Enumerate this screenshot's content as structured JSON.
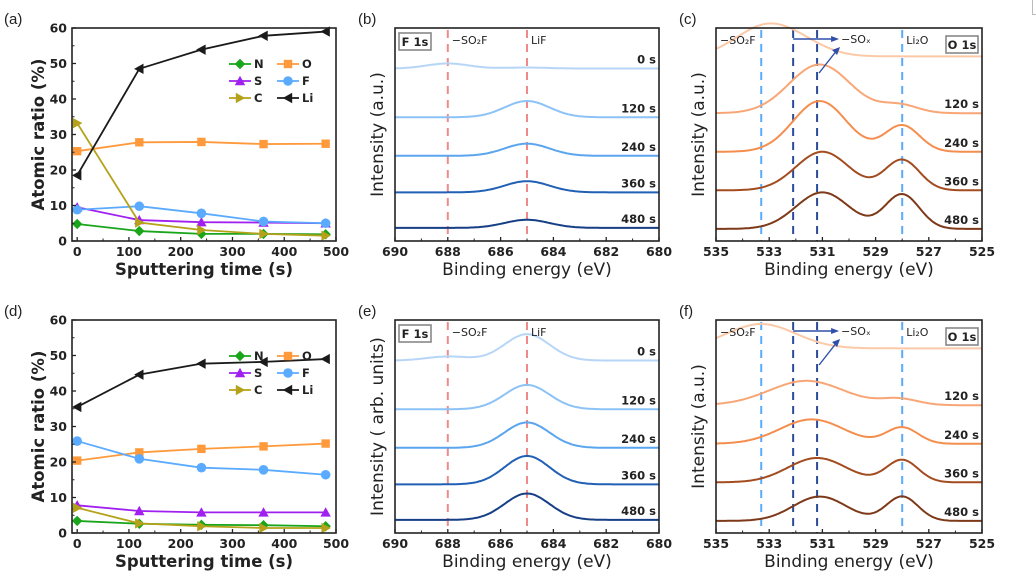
{
  "chart_data": [
    {
      "id": "a",
      "panel_label": "(a)",
      "type": "line",
      "xlabel": "Sputtering time (s)",
      "ylabel": "Atomic ratio (%)",
      "xlim": [
        -10,
        500
      ],
      "ylim": [
        0,
        60
      ],
      "xticks": [
        0,
        100,
        200,
        300,
        400,
        500
      ],
      "yticks": [
        0,
        10,
        20,
        30,
        40,
        50,
        60
      ],
      "grid": false,
      "legend_position": "upper-right",
      "x": [
        0,
        120,
        240,
        360,
        480
      ],
      "series": [
        {
          "name": "N",
          "color": "#1aa51a",
          "marker": "diamond",
          "values": [
            4.8,
            2.8,
            2.0,
            2.0,
            1.9
          ]
        },
        {
          "name": "O",
          "color": "#ff9a3c",
          "marker": "square",
          "values": [
            25.3,
            27.8,
            27.9,
            27.3,
            27.4
          ]
        },
        {
          "name": "S",
          "color": "#a020f0",
          "marker": "triangle-up",
          "values": [
            9.5,
            5.9,
            5.3,
            5.2,
            5.0
          ]
        },
        {
          "name": "F",
          "color": "#5aabff",
          "marker": "circle",
          "values": [
            8.8,
            9.8,
            7.8,
            5.5,
            5.0
          ]
        },
        {
          "name": "C",
          "color": "#b5a21a",
          "marker": "triangle-right",
          "values": [
            33.2,
            5.2,
            3.1,
            2.0,
            1.5
          ]
        },
        {
          "name": "Li",
          "color": "#1a1a1a",
          "marker": "triangle-left",
          "values": [
            18.5,
            48.5,
            53.9,
            57.8,
            59.0
          ]
        }
      ]
    },
    {
      "id": "b",
      "panel_label": "(b)",
      "type": "line",
      "core_level": "F 1s",
      "xlabel": "Binding energy (eV)",
      "ylabel": "Intensity (a.u.)",
      "xlim": [
        690,
        680
      ],
      "xticks": [
        690,
        688,
        686,
        684,
        682,
        680
      ],
      "reference_lines": [
        {
          "label": "−SO₂F",
          "energy": 688.0,
          "color": "#f08a8a"
        },
        {
          "label": "LiF",
          "energy": 685.0,
          "color": "#f08a8a"
        }
      ],
      "series": [
        {
          "name": "0 s",
          "color": "#b7d6f7",
          "baseline": 0.82,
          "peaks": [
            {
              "center": 688.0,
              "height": 0.025,
              "width": 0.8
            },
            {
              "center": 685.0,
              "height": 0.005,
              "width": 0.8
            }
          ]
        },
        {
          "name": "120 s",
          "color": "#8cc2f5",
          "baseline": 0.58,
          "peaks": [
            {
              "center": 685.0,
              "height": 0.08,
              "width": 0.85
            }
          ]
        },
        {
          "name": "240 s",
          "color": "#5aa5ee",
          "baseline": 0.39,
          "peaks": [
            {
              "center": 685.0,
              "height": 0.06,
              "width": 0.85
            }
          ]
        },
        {
          "name": "360 s",
          "color": "#2160b5",
          "baseline": 0.21,
          "peaks": [
            {
              "center": 685.0,
              "height": 0.055,
              "width": 0.85
            }
          ]
        },
        {
          "name": "480 s",
          "color": "#163f86",
          "baseline": 0.035,
          "peaks": [
            {
              "center": 685.0,
              "height": 0.04,
              "width": 0.85
            }
          ]
        }
      ]
    },
    {
      "id": "c",
      "panel_label": "(c)",
      "type": "line",
      "core_level": "O 1s",
      "xlabel": "Binding energy (eV)",
      "ylabel": "Intensity (a.u.)",
      "xlim": [
        535,
        525
      ],
      "xticks": [
        535,
        533,
        531,
        529,
        527,
        525
      ],
      "reference_lines": [
        {
          "label": "−SO₂F",
          "energy": 533.3,
          "color": "#5aabff"
        },
        {
          "label": "",
          "energy": 532.1,
          "color": "#2a4a9a"
        },
        {
          "label": "−SOₓ",
          "energy": 531.2,
          "color": "#2a4a9a"
        },
        {
          "label": "Li₂O",
          "energy": 528.0,
          "color": "#5aabff"
        }
      ],
      "annotation": {
        "text": "−SOₓ",
        "arrow_from": 532.1,
        "arrow_to": 531.2
      },
      "series": [
        {
          "name": "0 s",
          "color": "#fcc9a8",
          "baseline": 0.88,
          "peaks": [
            {
              "center": 533.2,
              "height": 0.14,
              "width": 1.1
            },
            {
              "center": 531.8,
              "height": 0.05,
              "width": 1.0
            }
          ]
        },
        {
          "name": "120 s",
          "color": "#f9a676",
          "baseline": 0.6,
          "peaks": [
            {
              "center": 531.1,
              "height": 0.24,
              "width": 1.15
            },
            {
              "center": 528.1,
              "height": 0.04,
              "width": 0.7
            }
          ]
        },
        {
          "name": "240 s",
          "color": "#f48e4e",
          "baseline": 0.41,
          "peaks": [
            {
              "center": 531.1,
              "height": 0.25,
              "width": 1.0
            },
            {
              "center": 528.0,
              "height": 0.13,
              "width": 0.65
            }
          ]
        },
        {
          "name": "360 s",
          "color": "#a24c20",
          "baseline": 0.22,
          "peaks": [
            {
              "center": 531.0,
              "height": 0.19,
              "width": 1.0
            },
            {
              "center": 528.0,
              "height": 0.15,
              "width": 0.65
            }
          ]
        },
        {
          "name": "480 s",
          "color": "#7e3a18",
          "baseline": 0.03,
          "peaks": [
            {
              "center": 531.0,
              "height": 0.18,
              "width": 1.0
            },
            {
              "center": 528.0,
              "height": 0.17,
              "width": 0.65
            }
          ]
        }
      ]
    },
    {
      "id": "d",
      "panel_label": "(d)",
      "type": "line",
      "xlabel": "Sputtering time (s)",
      "ylabel": "Atomic ratio (%)",
      "xlim": [
        -10,
        500
      ],
      "ylim": [
        0,
        60
      ],
      "xticks": [
        0,
        100,
        200,
        300,
        400,
        500
      ],
      "yticks": [
        0,
        10,
        20,
        30,
        40,
        50,
        60
      ],
      "grid": false,
      "legend_position": "upper-right",
      "x": [
        0,
        120,
        240,
        360,
        480
      ],
      "series": [
        {
          "name": "N",
          "color": "#1aa51a",
          "marker": "diamond",
          "values": [
            3.4,
            2.6,
            2.3,
            2.2,
            1.9
          ]
        },
        {
          "name": "O",
          "color": "#ff9a3c",
          "marker": "square",
          "values": [
            20.4,
            22.7,
            23.7,
            24.4,
            25.2
          ]
        },
        {
          "name": "S",
          "color": "#a020f0",
          "marker": "triangle-up",
          "values": [
            7.8,
            6.2,
            5.8,
            5.8,
            5.8
          ]
        },
        {
          "name": "F",
          "color": "#5aabff",
          "marker": "circle",
          "values": [
            25.9,
            20.9,
            18.4,
            17.8,
            16.4
          ]
        },
        {
          "name": "C",
          "color": "#b5a21a",
          "marker": "triangle-right",
          "values": [
            7.1,
            2.7,
            1.9,
            1.4,
            1.4
          ]
        },
        {
          "name": "Li",
          "color": "#1a1a1a",
          "marker": "triangle-left",
          "values": [
            35.5,
            44.6,
            47.7,
            48.2,
            49.0
          ]
        }
      ]
    },
    {
      "id": "e",
      "panel_label": "(e)",
      "type": "line",
      "core_level": "F 1s",
      "xlabel": "Binding energy (eV)",
      "ylabel": "Intensity ( arb. units)",
      "xlim": [
        690,
        680
      ],
      "xticks": [
        690,
        688,
        686,
        684,
        682,
        680
      ],
      "reference_lines": [
        {
          "label": "−SO₂F",
          "energy": 688.0,
          "color": "#f08a8a"
        },
        {
          "label": "LiF",
          "energy": 685.0,
          "color": "#f08a8a"
        }
      ],
      "series": [
        {
          "name": "0 s",
          "color": "#b7d6f7",
          "baseline": 0.82,
          "peaks": [
            {
              "center": 688.0,
              "height": 0.02,
              "width": 0.8
            },
            {
              "center": 685.0,
              "height": 0.13,
              "width": 0.85
            }
          ]
        },
        {
          "name": "120 s",
          "color": "#8cc2f5",
          "baseline": 0.58,
          "peaks": [
            {
              "center": 685.0,
              "height": 0.12,
              "width": 0.85
            }
          ]
        },
        {
          "name": "240 s",
          "color": "#5aa5ee",
          "baseline": 0.39,
          "peaks": [
            {
              "center": 685.0,
              "height": 0.125,
              "width": 0.85
            }
          ]
        },
        {
          "name": "360 s",
          "color": "#2160b5",
          "baseline": 0.21,
          "peaks": [
            {
              "center": 685.0,
              "height": 0.14,
              "width": 0.85
            }
          ]
        },
        {
          "name": "480 s",
          "color": "#163f86",
          "baseline": 0.035,
          "peaks": [
            {
              "center": 685.0,
              "height": 0.13,
              "width": 0.85
            }
          ]
        }
      ]
    },
    {
      "id": "f",
      "panel_label": "(f)",
      "type": "line",
      "core_level": "O 1s",
      "xlabel": "Binding energy (eV)",
      "ylabel": "Intensity (a.u.)",
      "xlim": [
        535,
        525
      ],
      "xticks": [
        535,
        533,
        531,
        529,
        527,
        525
      ],
      "reference_lines": [
        {
          "label": "−SO₂F",
          "energy": 533.3,
          "color": "#5aabff"
        },
        {
          "label": "",
          "energy": 532.1,
          "color": "#2a4a9a"
        },
        {
          "label": "−SOₓ",
          "energy": 531.2,
          "color": "#2a4a9a"
        },
        {
          "label": "Li₂O",
          "energy": 528.0,
          "color": "#5aabff"
        }
      ],
      "annotation": {
        "text": "−SOₓ",
        "arrow_from": 532.1,
        "arrow_to": 531.2
      },
      "series": [
        {
          "name": "0 s",
          "color": "#fcc9a8",
          "baseline": 0.88,
          "peaks": [
            {
              "center": 533.3,
              "height": 0.12,
              "width": 1.3
            }
          ]
        },
        {
          "name": "120 s",
          "color": "#f9a676",
          "baseline": 0.6,
          "peaks": [
            {
              "center": 531.6,
              "height": 0.12,
              "width": 1.4
            },
            {
              "center": 528.1,
              "height": 0.03,
              "width": 0.7
            }
          ]
        },
        {
          "name": "240 s",
          "color": "#f48e4e",
          "baseline": 0.41,
          "peaks": [
            {
              "center": 531.4,
              "height": 0.12,
              "width": 1.2
            },
            {
              "center": 528.0,
              "height": 0.08,
              "width": 0.6
            }
          ]
        },
        {
          "name": "360 s",
          "color": "#a24c20",
          "baseline": 0.22,
          "peaks": [
            {
              "center": 531.2,
              "height": 0.12,
              "width": 1.1
            },
            {
              "center": 528.0,
              "height": 0.11,
              "width": 0.6
            }
          ]
        },
        {
          "name": "480 s",
          "color": "#7e3a18",
          "baseline": 0.03,
          "peaks": [
            {
              "center": 531.1,
              "height": 0.12,
              "width": 1.0
            },
            {
              "center": 528.0,
              "height": 0.12,
              "width": 0.6
            }
          ]
        }
      ]
    }
  ]
}
